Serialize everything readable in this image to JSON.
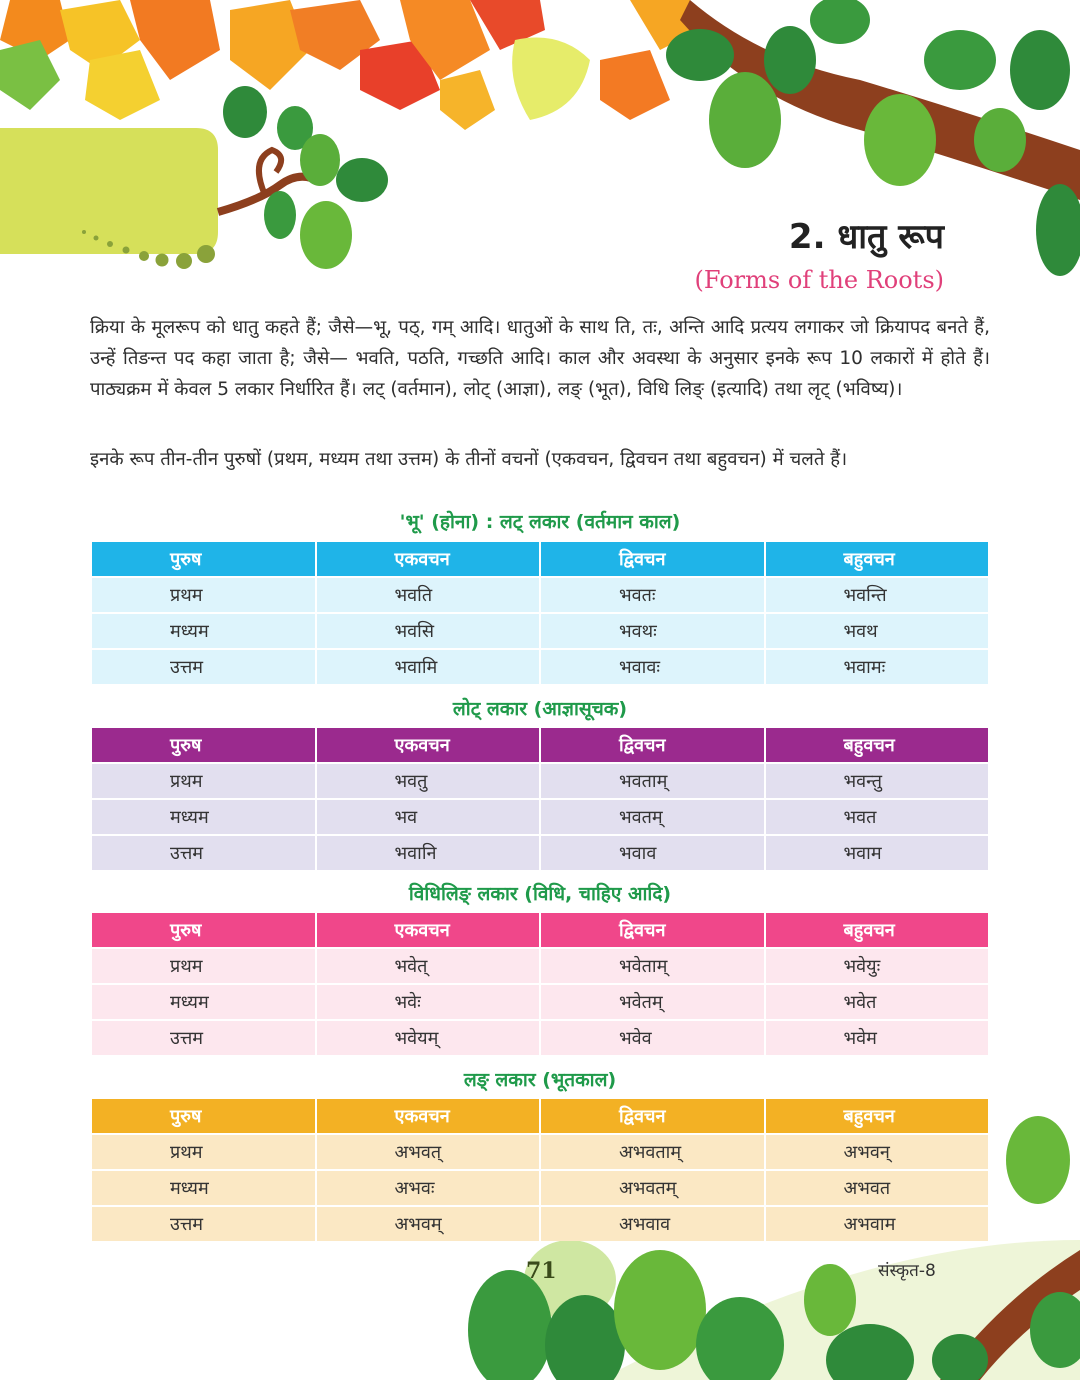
{
  "chapter": {
    "title": "2. धातु रूप",
    "subtitle": "(Forms of the Roots)"
  },
  "intro": {
    "paragraph1": "क्रिया के मूलरूप को धातु कहते हैं; जैसे—भू, पठ्, गम् आदि। धातुओं के साथ ति, तः, अन्ति आदि प्रत्यय लगाकर जो क्रियापद बनते हैं, उन्हें तिङन्त पद कहा जाता है; जैसे— भवति, पठति, गच्छति आदि। काल और अवस्था के अनुसार इनके रूप 10 लकारों में होते हैं। पाठ्यक्रम में केवल 5 लकार निर्धारित हैं। लट् (वर्तमान), लोट् (आज्ञा), लङ् (भूत), विधि लिङ् (इत्यादि) तथा लृट् (भविष्य)।",
    "paragraph2": "इनके रूप तीन-तीन पुरुषों (प्रथम, मध्यम तथा उत्तम) के तीनों वचनों (एकवचन, द्विवचन तथा बहुवचन) में चलते हैं।"
  },
  "tables": [
    {
      "title": "'भू' (होना) : लट् लकार (वर्तमान काल)",
      "headers": [
        "पुरुष",
        "एकवचन",
        "द्विवचन",
        "बहुवचन"
      ],
      "rows": [
        [
          "प्रथम",
          "भवति",
          "भवतः",
          "भवन्ति"
        ],
        [
          "मध्यम",
          "भवसि",
          "भवथः",
          "भवथ"
        ],
        [
          "उत्तम",
          "भवामि",
          "भवावः",
          "भवामः"
        ]
      ]
    },
    {
      "title": "लोट् लकार (आज्ञासूचक)",
      "headers": [
        "पुरुष",
        "एकवचन",
        "द्विवचन",
        "बहुवचन"
      ],
      "rows": [
        [
          "प्रथम",
          "भवतु",
          "भवताम्",
          "भवन्तु"
        ],
        [
          "मध्यम",
          "भव",
          "भवतम्",
          "भवत"
        ],
        [
          "उत्तम",
          "भवानि",
          "भवाव",
          "भवाम"
        ]
      ]
    },
    {
      "title": "विधिलिङ् लकार (विधि, चाहिए आदि)",
      "headers": [
        "पुरुष",
        "एकवचन",
        "द्विवचन",
        "बहुवचन"
      ],
      "rows": [
        [
          "प्रथम",
          "भवेत्",
          "भवेताम्",
          "भवेयुः"
        ],
        [
          "मध्यम",
          "भवेः",
          "भवेतम्",
          "भवेत"
        ],
        [
          "उत्तम",
          "भवेयम्",
          "भवेव",
          "भवेम"
        ]
      ]
    },
    {
      "title": "लङ् लकार (भूतकाल)",
      "headers": [
        "पुरुष",
        "एकवचन",
        "द्विवचन",
        "बहुवचन"
      ],
      "rows": [
        [
          "प्रथम",
          "अभवत्",
          "अभवताम्",
          "अभवन्"
        ],
        [
          "मध्यम",
          "अभवः",
          "अभवतम्",
          "अभवत"
        ],
        [
          "उत्तम",
          "अभवम्",
          "अभवाव",
          "अभवाम"
        ]
      ]
    }
  ],
  "footer": {
    "page_number": "71",
    "book": "संस्कृत-8"
  },
  "colors": {
    "table1_header": "#1fb4e8",
    "table2_header": "#9b2a8e",
    "table3_header": "#f0478a",
    "table4_header": "#f3b124",
    "title_green": "#1f9a4a",
    "subtitle_pink": "#e0407a"
  }
}
